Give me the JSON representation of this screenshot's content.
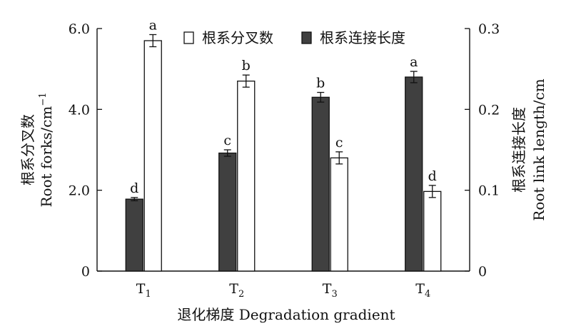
{
  "chart_data": {
    "type": "bar",
    "categories": [
      "T1",
      "T2",
      "T3",
      "T4"
    ],
    "category_labels": [
      {
        "base": "T",
        "sub": "1"
      },
      {
        "base": "T",
        "sub": "2"
      },
      {
        "base": "T",
        "sub": "3"
      },
      {
        "base": "T",
        "sub": "4"
      }
    ],
    "series": [
      {
        "name": "根系连接长度",
        "axis": "right",
        "color": "#404040",
        "values": [
          0.089,
          0.146,
          0.215,
          0.24
        ],
        "errors": [
          0.002,
          0.004,
          0.006,
          0.007
        ],
        "letters": [
          "d",
          "c",
          "b",
          "a"
        ]
      },
      {
        "name": "根系分叉数",
        "axis": "left",
        "color": "#ffffff",
        "values": [
          5.7,
          4.7,
          2.8,
          1.97
        ],
        "errors": [
          0.15,
          0.15,
          0.15,
          0.15
        ],
        "letters": [
          "a",
          "b",
          "c",
          "d"
        ]
      }
    ],
    "left_axis": {
      "label_line1": "根系分叉数",
      "label_line2": "Root forks/cm",
      "label_sup": "−1",
      "ylim": [
        0,
        6
      ],
      "ticks": [
        "0",
        "2.0",
        "4.0",
        "6.0"
      ]
    },
    "right_axis": {
      "label_line1": "根系连接长度",
      "label_line2": "Root link length/cm",
      "ylim": [
        0,
        0.3
      ],
      "ticks": [
        "0",
        "0.1",
        "0.2",
        "0.3"
      ]
    },
    "xlabel": "退化梯度 Degradation gradient",
    "legend": {
      "placement": "top-right",
      "items": [
        {
          "label": "根系分叉数",
          "fill": "#ffffff"
        },
        {
          "label": "根系连接长度",
          "fill": "#404040"
        }
      ]
    },
    "grid": false
  }
}
